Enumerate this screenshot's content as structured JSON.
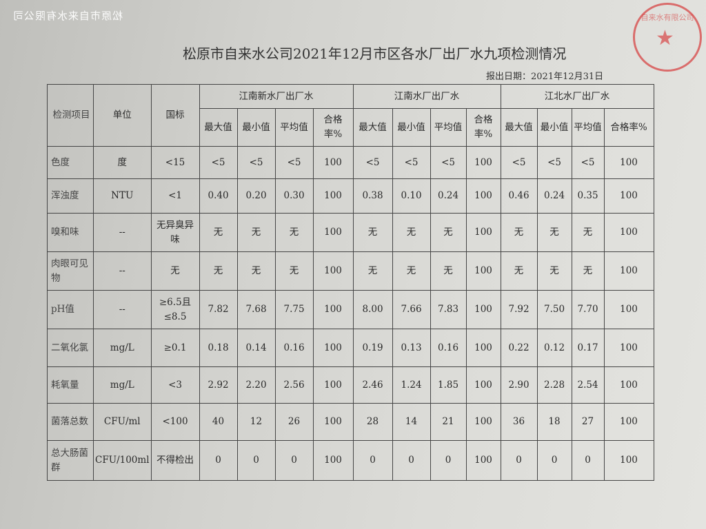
{
  "watermark": "松原市自来水有限公司",
  "stamp": {
    "text": "松原市自来水有限公司",
    "color": "#d74646"
  },
  "title": "松原市自来水公司2021年12月市区各水厂出厂水九项检测情况",
  "report_date": "报出日期：2021年12月31日",
  "table": {
    "head": {
      "item": "检测项目",
      "unit": "单位",
      "standard": "国标"
    },
    "plants": [
      "江南新水厂出厂水",
      "江南水厂出厂水",
      "江北水厂出厂水"
    ],
    "sub_headers": [
      "最大值",
      "最小值",
      "平均值",
      "合格率%"
    ],
    "rows": [
      {
        "item": "色度",
        "unit": "度",
        "standard": "<15",
        "values": [
          "<5",
          "<5",
          "<5",
          "100",
          "<5",
          "<5",
          "<5",
          "100",
          "<5",
          "<5",
          "<5",
          "100"
        ]
      },
      {
        "item": "浑浊度",
        "unit": "NTU",
        "standard": "<1",
        "values": [
          "0.40",
          "0.20",
          "0.30",
          "100",
          "0.38",
          "0.10",
          "0.24",
          "100",
          "0.46",
          "0.24",
          "0.35",
          "100"
        ]
      },
      {
        "item": "嗅和味",
        "unit": "--",
        "standard": "无异臭异味",
        "values": [
          "无",
          "无",
          "无",
          "100",
          "无",
          "无",
          "无",
          "100",
          "无",
          "无",
          "无",
          "100"
        ]
      },
      {
        "item": "肉眼可见物",
        "unit": "--",
        "standard": "无",
        "values": [
          "无",
          "无",
          "无",
          "100",
          "无",
          "无",
          "无",
          "100",
          "无",
          "无",
          "无",
          "100"
        ]
      },
      {
        "item": "pH值",
        "unit": "--",
        "standard": "≥6.5且≤8.5",
        "values": [
          "7.82",
          "7.68",
          "7.75",
          "100",
          "8.00",
          "7.66",
          "7.83",
          "100",
          "7.92",
          "7.50",
          "7.70",
          "100"
        ]
      },
      {
        "item": "二氧化氯",
        "unit": "mg/L",
        "standard": "≥0.1",
        "values": [
          "0.18",
          "0.14",
          "0.16",
          "100",
          "0.19",
          "0.13",
          "0.16",
          "100",
          "0.22",
          "0.12",
          "0.17",
          "100"
        ]
      },
      {
        "item": "耗氧量",
        "unit": "mg/L",
        "standard": "<3",
        "values": [
          "2.92",
          "2.20",
          "2.56",
          "100",
          "2.46",
          "1.24",
          "1.85",
          "100",
          "2.90",
          "2.28",
          "2.54",
          "100"
        ]
      },
      {
        "item": "菌落总数",
        "unit": "CFU/ml",
        "standard": "<100",
        "values": [
          "40",
          "12",
          "26",
          "100",
          "28",
          "14",
          "21",
          "100",
          "36",
          "18",
          "27",
          "100"
        ]
      },
      {
        "item": "总大肠菌群",
        "unit": "CFU/100ml",
        "standard": "不得检出",
        "values": [
          "0",
          "0",
          "0",
          "100",
          "0",
          "0",
          "0",
          "100",
          "0",
          "0",
          "0",
          "100"
        ]
      }
    ]
  }
}
